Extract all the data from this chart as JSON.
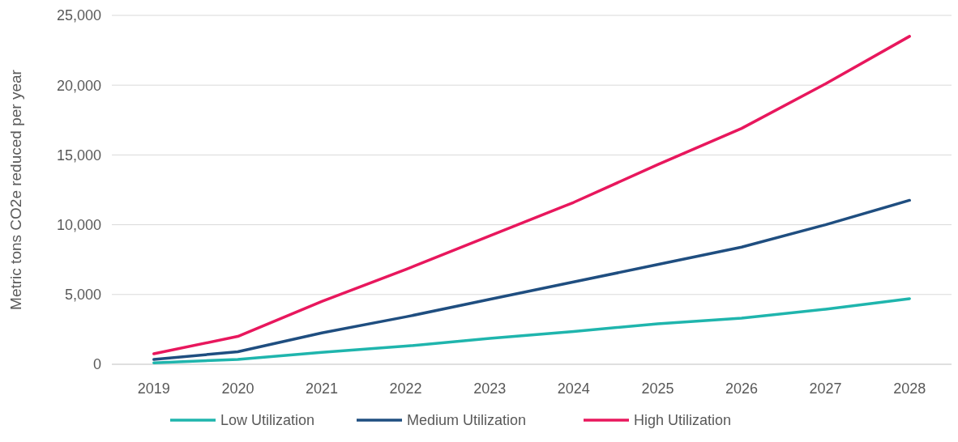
{
  "chart_data": {
    "type": "line",
    "ylabel": "Metric tons CO2e reduced per year",
    "categories": [
      "2019",
      "2020",
      "2021",
      "2022",
      "2023",
      "2024",
      "2025",
      "2026",
      "2027",
      "2028"
    ],
    "series": [
      {
        "name": "Low Utilization",
        "color": "#1fb5ad",
        "values": [
          100,
          350,
          850,
          1300,
          1850,
          2350,
          2900,
          3300,
          3950,
          4700
        ]
      },
      {
        "name": "Medium Utilization",
        "color": "#1f4e80",
        "values": [
          350,
          900,
          2250,
          3400,
          4650,
          5900,
          7150,
          8400,
          10000,
          11750
        ]
      },
      {
        "name": "High Utilization",
        "color": "#e8175d",
        "values": [
          750,
          2000,
          4500,
          6800,
          9200,
          11600,
          14300,
          16900,
          20100,
          23500
        ]
      }
    ],
    "ylim": [
      0,
      25000
    ],
    "yticks": [
      {
        "value": 0,
        "label": "0"
      },
      {
        "value": 5000,
        "label": "5,000"
      },
      {
        "value": 10000,
        "label": "10,000"
      },
      {
        "value": 15000,
        "label": "15,000"
      },
      {
        "value": 20000,
        "label": "20,000"
      },
      {
        "value": 25000,
        "label": "25,000"
      }
    ],
    "grid": "y",
    "legend": "bottom",
    "marker": "none",
    "line_style": "solid"
  }
}
